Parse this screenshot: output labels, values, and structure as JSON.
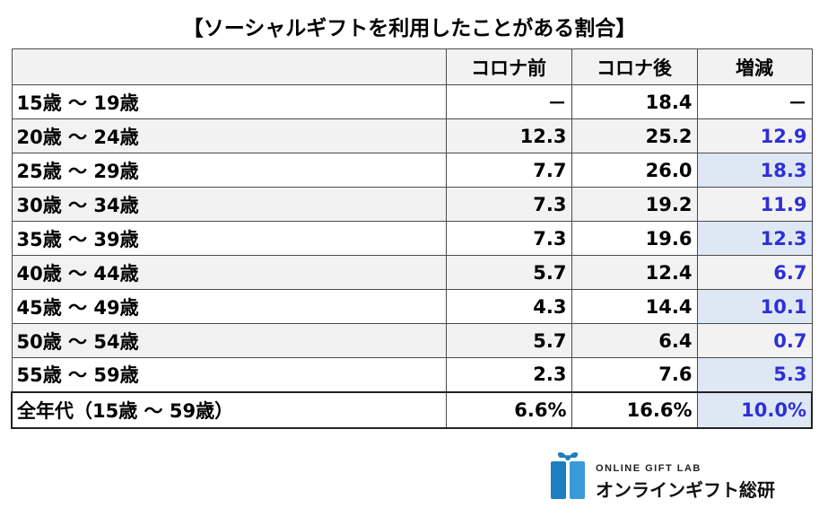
{
  "title": "【ソーシャルギフトを利用したことがある割合】",
  "colors": {
    "diff_bg": "#dde8f4",
    "diff_text": "#2e2fd6",
    "row_shade": "#f2f2f2",
    "logo_blue": "#1e7fc0"
  },
  "chart_data": {
    "type": "table",
    "columns": [
      "",
      "コロナ前",
      "コロナ後",
      "増減"
    ],
    "rows": [
      {
        "label": "15歳 ～ 19歳",
        "before": "－",
        "after": "18.4",
        "diff": "－"
      },
      {
        "label": "20歳 ～ 24歳",
        "before": "12.3",
        "after": "25.2",
        "diff": "12.9"
      },
      {
        "label": "25歳 ～ 29歳",
        "before": "7.7",
        "after": "26.0",
        "diff": "18.3"
      },
      {
        "label": "30歳 ～ 34歳",
        "before": "7.3",
        "after": "19.2",
        "diff": "11.9"
      },
      {
        "label": "35歳 ～ 39歳",
        "before": "7.3",
        "after": "19.6",
        "diff": "12.3"
      },
      {
        "label": "40歳 ～ 44歳",
        "before": "5.7",
        "after": "12.4",
        "diff": "6.7"
      },
      {
        "label": "45歳 ～ 49歳",
        "before": "4.3",
        "after": "14.4",
        "diff": "10.1"
      },
      {
        "label": "50歳 ～ 54歳",
        "before": "5.7",
        "after": "6.4",
        "diff": "0.7"
      },
      {
        "label": "55歳 ～ 59歳",
        "before": "2.3",
        "after": "7.6",
        "diff": "5.3"
      }
    ],
    "total": {
      "label": "全年代（15歳 ～ 59歳）",
      "before": "6.6%",
      "after": "16.6%",
      "diff": "10.0%"
    }
  },
  "logo": {
    "en": "ONLINE GIFT LAB",
    "jp": "オンラインギフト総研",
    "icon": "gift-box-icon"
  }
}
